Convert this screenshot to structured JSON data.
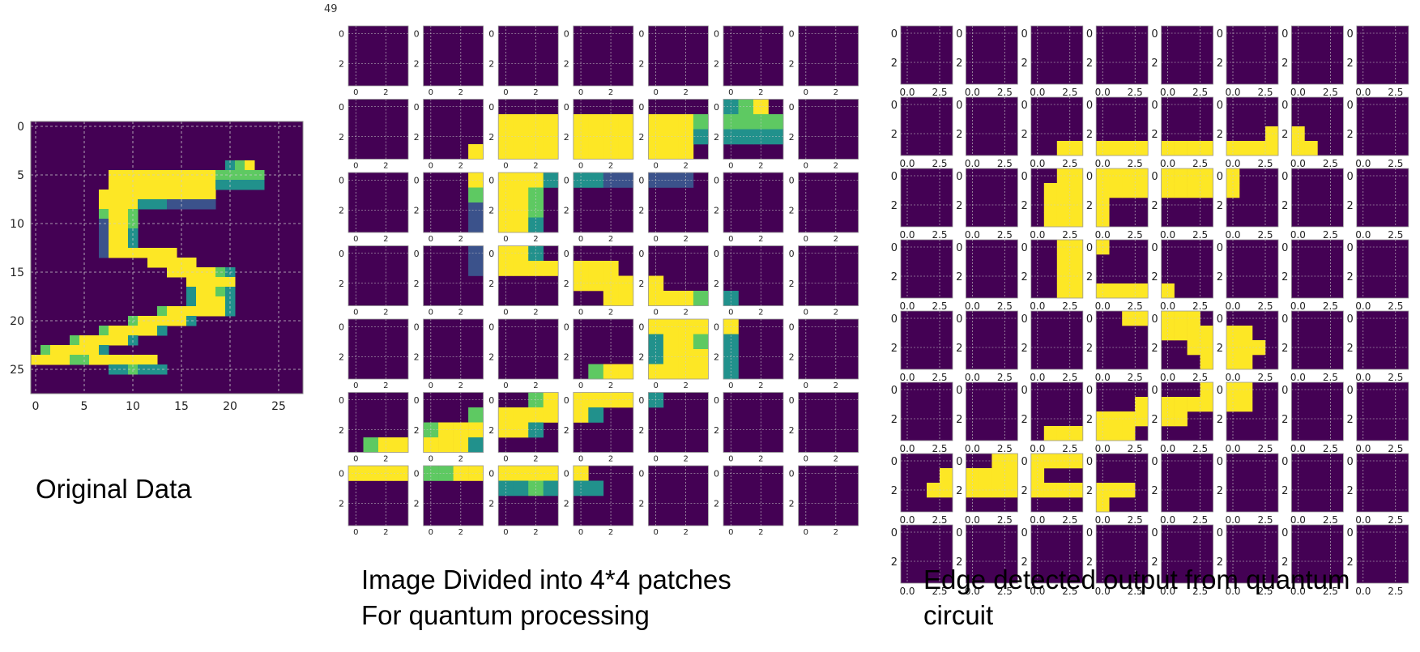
{
  "counter_label": "49",
  "captions": {
    "original": "Original Data",
    "patches": "Image Divided into 4*4 patches\nFor quantum processing",
    "edges": "Edge detected output from quantum\ncircuit"
  },
  "colors": {
    "background": "#440154",
    "low": "#3b528b",
    "mid_low": "#21918c",
    "mid": "#5ec962",
    "high": "#fde725",
    "grid": "#cccccc",
    "axis_text": "#222222"
  },
  "original_panel": {
    "xticks": [
      "0",
      "5",
      "10",
      "15",
      "20",
      "25"
    ],
    "yticks": [
      "0",
      "5",
      "10",
      "15",
      "20",
      "25"
    ]
  },
  "patch_grid": {
    "rows": 7,
    "cols": 7,
    "yticks": [
      "0",
      "2"
    ],
    "xticks": [
      "0",
      "2"
    ]
  },
  "edge_grid": {
    "rows": 8,
    "cols": 8,
    "yticks": [
      "0",
      "2"
    ],
    "xticks": [
      "0.0",
      "2.5"
    ]
  }
}
